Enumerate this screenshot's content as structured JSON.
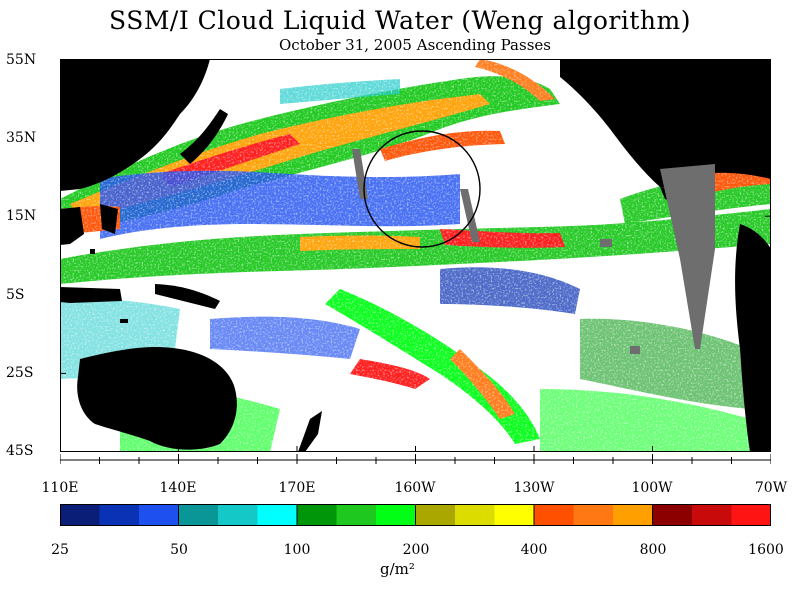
{
  "title": "SSM/I Cloud Liquid Water (Weng algorithm)",
  "subtitle": "October 31, 2005  Ascending Passes",
  "map": {
    "lat_labels": [
      "55N",
      "35N",
      "15N",
      "5S",
      "25S",
      "45S"
    ],
    "lon_labels": [
      "110E",
      "140E",
      "170E",
      "160W",
      "130W",
      "100W",
      "70W"
    ],
    "colors": {
      "ocean_clear": "#ffffff",
      "land": "#000000",
      "data_gap": "#6e6e6e",
      "circle": "#000000"
    }
  },
  "colorbar": {
    "labels": [
      "25",
      "50",
      "100",
      "200",
      "400",
      "800",
      "1600"
    ],
    "units": "g/m²",
    "colors": [
      "#0a1e78",
      "#0a32b4",
      "#1e50f0",
      "#0a9696",
      "#14c8c8",
      "#00ffff",
      "#00960a",
      "#1ec81e",
      "#00ff14",
      "#aaa800",
      "#dcdc00",
      "#ffff00",
      "#ff5000",
      "#ff7814",
      "#ffa000",
      "#8c0000",
      "#c80a0a",
      "#ff1414"
    ]
  }
}
